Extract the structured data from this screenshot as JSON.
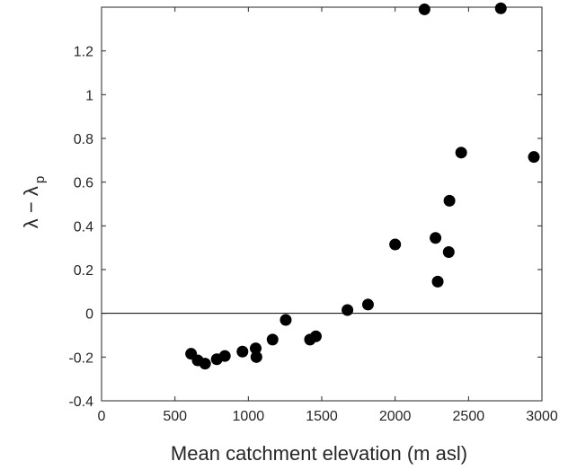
{
  "chart_data": {
    "type": "scatter",
    "title": "",
    "xlabel": "Mean catchment elevation (m asl)",
    "ylabel_main": "λ − λ",
    "ylabel_sub": "p",
    "xlim": [
      0,
      3000
    ],
    "ylim": [
      -0.4,
      1.4
    ],
    "xticks": [
      0,
      500,
      1000,
      1500,
      2000,
      2500,
      3000
    ],
    "xtick_labels": [
      "0",
      "500",
      "1000",
      "1500",
      "2000",
      "2500",
      "3000"
    ],
    "yticks": [
      -0.4,
      -0.2,
      0,
      0.2,
      0.4,
      0.6,
      0.8,
      1,
      1.2
    ],
    "ytick_labels": [
      "-0.4",
      "-0.2",
      "0",
      "0.2",
      "0.4",
      "0.6",
      "0.8",
      "1",
      "1.2"
    ],
    "reference_line_y": 0,
    "grid": false,
    "legend": "none",
    "marker_color": "#000000",
    "points": [
      {
        "x": 610,
        "y": -0.185
      },
      {
        "x": 655,
        "y": -0.215
      },
      {
        "x": 705,
        "y": -0.23
      },
      {
        "x": 785,
        "y": -0.21
      },
      {
        "x": 840,
        "y": -0.195
      },
      {
        "x": 960,
        "y": -0.175
      },
      {
        "x": 1050,
        "y": -0.16
      },
      {
        "x": 1055,
        "y": -0.2
      },
      {
        "x": 1165,
        "y": -0.12
      },
      {
        "x": 1255,
        "y": -0.03
      },
      {
        "x": 1420,
        "y": -0.12
      },
      {
        "x": 1460,
        "y": -0.105
      },
      {
        "x": 1675,
        "y": 0.015
      },
      {
        "x": 1815,
        "y": 0.04
      },
      {
        "x": 2000,
        "y": 0.315
      },
      {
        "x": 2200,
        "y": 1.39
      },
      {
        "x": 2275,
        "y": 0.345
      },
      {
        "x": 2290,
        "y": 0.145
      },
      {
        "x": 2365,
        "y": 0.28
      },
      {
        "x": 2370,
        "y": 0.515
      },
      {
        "x": 2450,
        "y": 0.735
      },
      {
        "x": 2720,
        "y": 1.395
      },
      {
        "x": 2945,
        "y": 0.715
      }
    ]
  }
}
